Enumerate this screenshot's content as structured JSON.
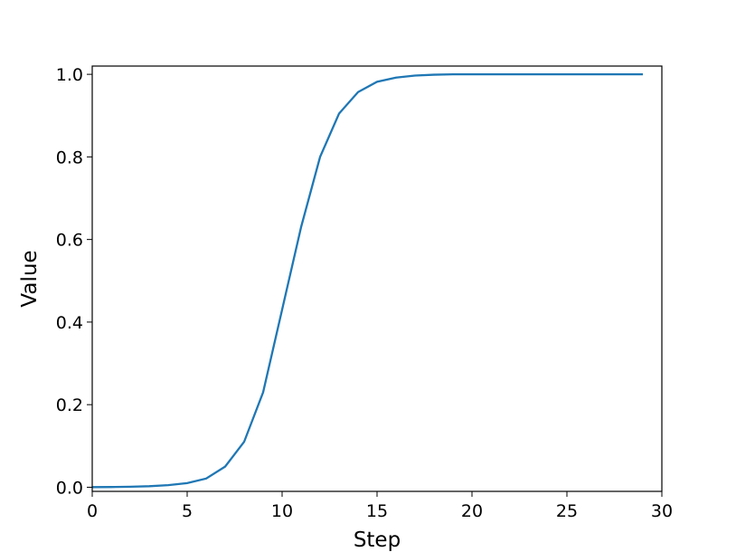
{
  "chart_data": {
    "type": "line",
    "xlabel": "Step",
    "ylabel": "Value",
    "x": [
      0,
      1,
      2,
      3,
      4,
      5,
      6,
      7,
      8,
      9,
      10,
      11,
      12,
      13,
      14,
      15,
      16,
      17,
      18,
      19,
      20,
      21,
      22,
      23,
      24,
      25,
      26,
      27,
      28,
      29
    ],
    "series": [
      {
        "color": "#1f77b4",
        "values": [
          0.0003,
          0.0006,
          0.0012,
          0.0025,
          0.005,
          0.01,
          0.021,
          0.05,
          0.11,
          0.23,
          0.43,
          0.63,
          0.8,
          0.905,
          0.957,
          0.982,
          0.992,
          0.997,
          0.999,
          1.0,
          1.0,
          1.0,
          1.0,
          1.0,
          1.0,
          1.0,
          1.0,
          1.0,
          1.0,
          1.0
        ]
      }
    ],
    "xlim": [
      0,
      30
    ],
    "xticks": [
      0,
      5,
      10,
      15,
      20,
      25,
      30
    ],
    "ylim": [
      -0.01,
      1.02
    ],
    "yticks": [
      {
        "value": 0,
        "label": "0.0"
      },
      0.2,
      0.4,
      0.6,
      0.8,
      {
        "value": 1,
        "label": "1.0"
      }
    ],
    "grid": false
  }
}
